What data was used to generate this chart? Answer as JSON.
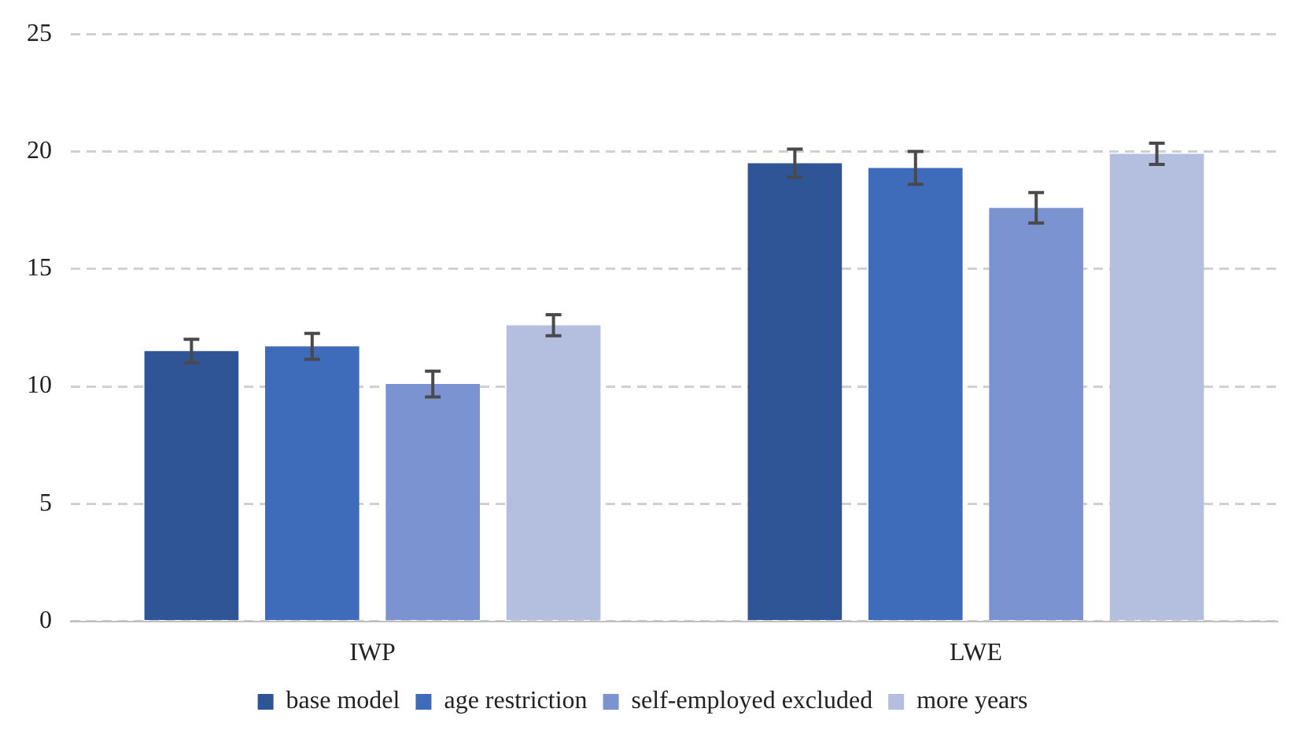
{
  "chart_data": {
    "type": "bar",
    "categories": [
      "IWP",
      "LWE"
    ],
    "series": [
      {
        "name": "base model",
        "color": "#2f5597",
        "values": [
          11.5,
          19.5
        ],
        "errors": [
          0.5,
          0.6
        ]
      },
      {
        "name": "age restriction",
        "color": "#3f6bbb",
        "values": [
          11.7,
          19.3
        ],
        "errors": [
          0.55,
          0.7
        ]
      },
      {
        "name": "self-employed excluded",
        "color": "#7b93d1",
        "values": [
          10.1,
          17.6
        ],
        "errors": [
          0.55,
          0.65
        ]
      },
      {
        "name": "more years",
        "color": "#b4bfe0",
        "values": [
          12.6,
          19.9
        ],
        "errors": [
          0.45,
          0.45
        ]
      }
    ],
    "ylim": [
      0,
      25
    ],
    "yticks": [
      0,
      5,
      10,
      15,
      20,
      25
    ],
    "grid": "y",
    "legend": "bottom"
  }
}
